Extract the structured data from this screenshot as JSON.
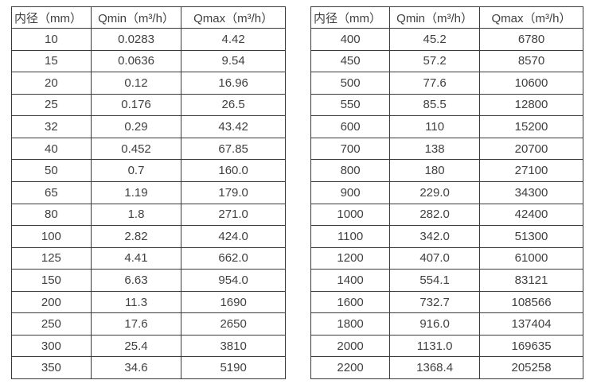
{
  "colors": {
    "background": "#ffffff",
    "border": "#3a3a3a",
    "text": "#404040"
  },
  "tables": [
    {
      "name": "flow-rate-table-small-diameters",
      "columns": [
        "内径（mm）",
        "Qmin（m³/h）",
        "Qmax（m³/h）"
      ],
      "rows": [
        [
          "10",
          "0.0283",
          "4.42"
        ],
        [
          "15",
          "0.0636",
          "9.54"
        ],
        [
          "20",
          "0.12",
          "16.96"
        ],
        [
          "25",
          "0.176",
          "26.5"
        ],
        [
          "32",
          "0.29",
          "43.42"
        ],
        [
          "40",
          "0.452",
          "67.85"
        ],
        [
          "50",
          "0.7",
          "160.0"
        ],
        [
          "65",
          "1.19",
          "179.0"
        ],
        [
          "80",
          "1.8",
          "271.0"
        ],
        [
          "100",
          "2.82",
          "424.0"
        ],
        [
          "125",
          "4.41",
          "662.0"
        ],
        [
          "150",
          "6.63",
          "954.0"
        ],
        [
          "200",
          "11.3",
          "1690"
        ],
        [
          "250",
          "17.6",
          "2650"
        ],
        [
          "300",
          "25.4",
          "3810"
        ],
        [
          "350",
          "34.6",
          "5190"
        ]
      ]
    },
    {
      "name": "flow-rate-table-large-diameters",
      "columns": [
        "内径（mm）",
        "Qmin（m³/h）",
        "Qmax（m³/h）"
      ],
      "rows": [
        [
          "400",
          "45.2",
          "6780"
        ],
        [
          "450",
          "57.2",
          "8570"
        ],
        [
          "500",
          "77.6",
          "10600"
        ],
        [
          "550",
          "85.5",
          "12800"
        ],
        [
          "600",
          "110",
          "15200"
        ],
        [
          "700",
          "138",
          "20700"
        ],
        [
          "800",
          "180",
          "27100"
        ],
        [
          "900",
          "229.0",
          "34300"
        ],
        [
          "1000",
          "282.0",
          "42400"
        ],
        [
          "1100",
          "342.0",
          "51300"
        ],
        [
          "1200",
          "407.0",
          "61000"
        ],
        [
          "1400",
          "554.1",
          "83121"
        ],
        [
          "1600",
          "732.7",
          "108566"
        ],
        [
          "1800",
          "916.0",
          "137404"
        ],
        [
          "2000",
          "1131.0",
          "169635"
        ],
        [
          "2200",
          "1368.4",
          "205258"
        ]
      ]
    }
  ]
}
